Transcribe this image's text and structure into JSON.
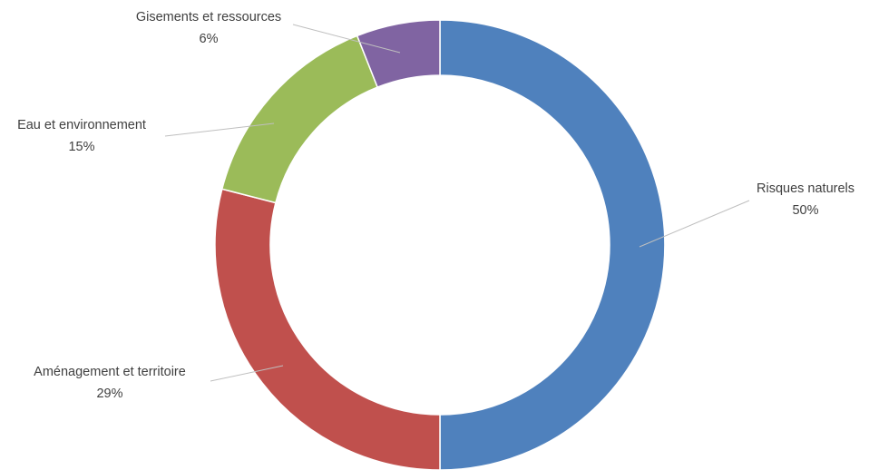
{
  "chart_data": {
    "type": "pie",
    "style": "donut",
    "categories": [
      "Risques naturels",
      "Aménagement et territoire",
      "Eau et environnement",
      "Gisements et ressources"
    ],
    "values": [
      50,
      29,
      15,
      6
    ],
    "labels": [
      "50%",
      "29%",
      "15%",
      "6%"
    ],
    "colors": [
      "#4f81bd",
      "#c0504d",
      "#9bbb59",
      "#8064a2"
    ],
    "start_angle_deg": 0,
    "direction": "clockwise",
    "legend": "none",
    "title": ""
  }
}
